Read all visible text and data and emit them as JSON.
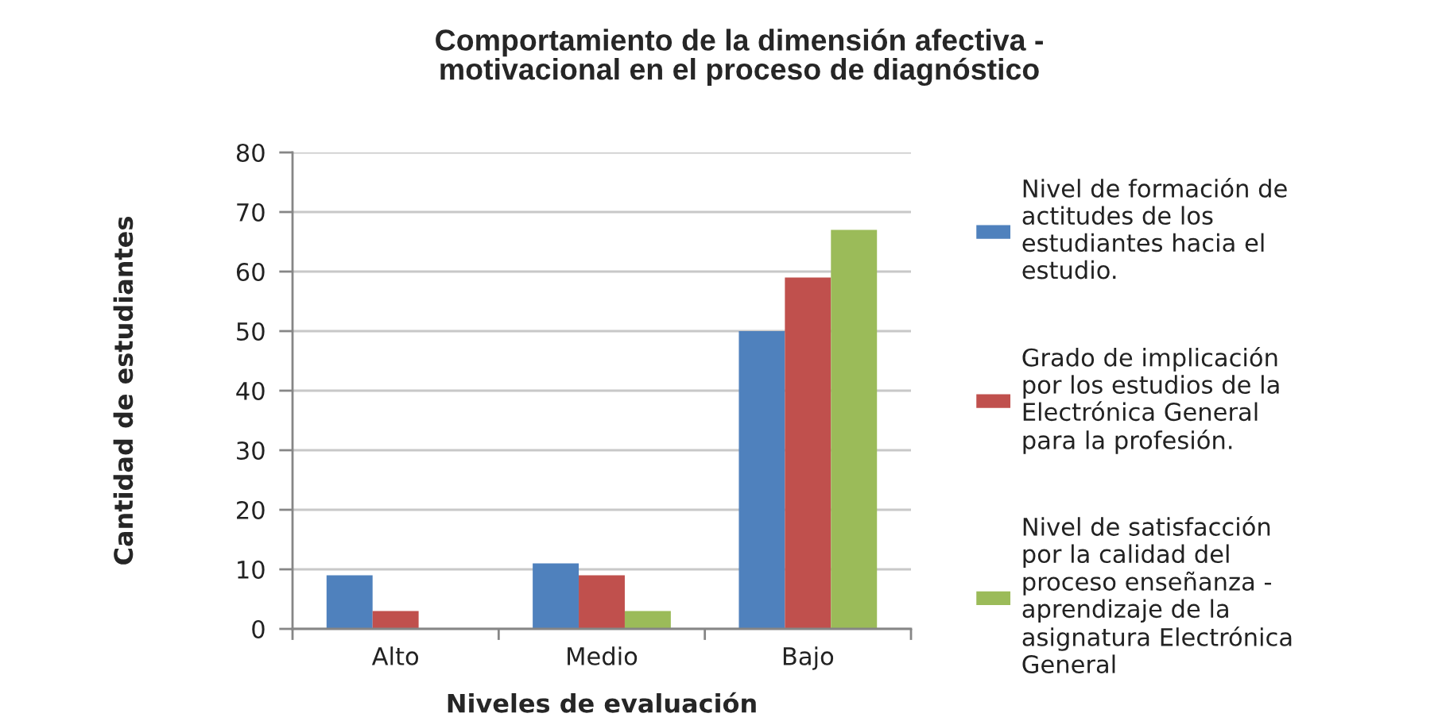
{
  "chart_data": {
    "type": "bar",
    "title": "Comportamiento de la dimensión afectiva -\nmotivacional en el proceso de diagnóstico",
    "xlabel": "Niveles de evaluación",
    "ylabel": "Cantidad de estudiantes",
    "categories": [
      "Alto",
      "Medio",
      "Bajo"
    ],
    "series": [
      {
        "name": "Nivel de formación de\nactitudes de los\nestudiantes hacia el\nestudio.",
        "color": "#4f81bd",
        "values": [
          9,
          11,
          50
        ]
      },
      {
        "name": "Grado de implicación\npor los estudios de la\nElectrónica General\npara la profesión.",
        "color": "#c0504d",
        "values": [
          3,
          9,
          59
        ]
      },
      {
        "name": "Nivel de satisfacción\npor la calidad del\nproceso enseñanza -\naprendizaje de la\nasignatura Electrónica\nGeneral",
        "color": "#9bbb59",
        "values": [
          null,
          3,
          67
        ]
      }
    ],
    "ylim": [
      0,
      80
    ],
    "yticks": [
      0,
      10,
      20,
      30,
      40,
      50,
      60,
      70,
      80
    ],
    "grid": "y",
    "legend": "right"
  }
}
